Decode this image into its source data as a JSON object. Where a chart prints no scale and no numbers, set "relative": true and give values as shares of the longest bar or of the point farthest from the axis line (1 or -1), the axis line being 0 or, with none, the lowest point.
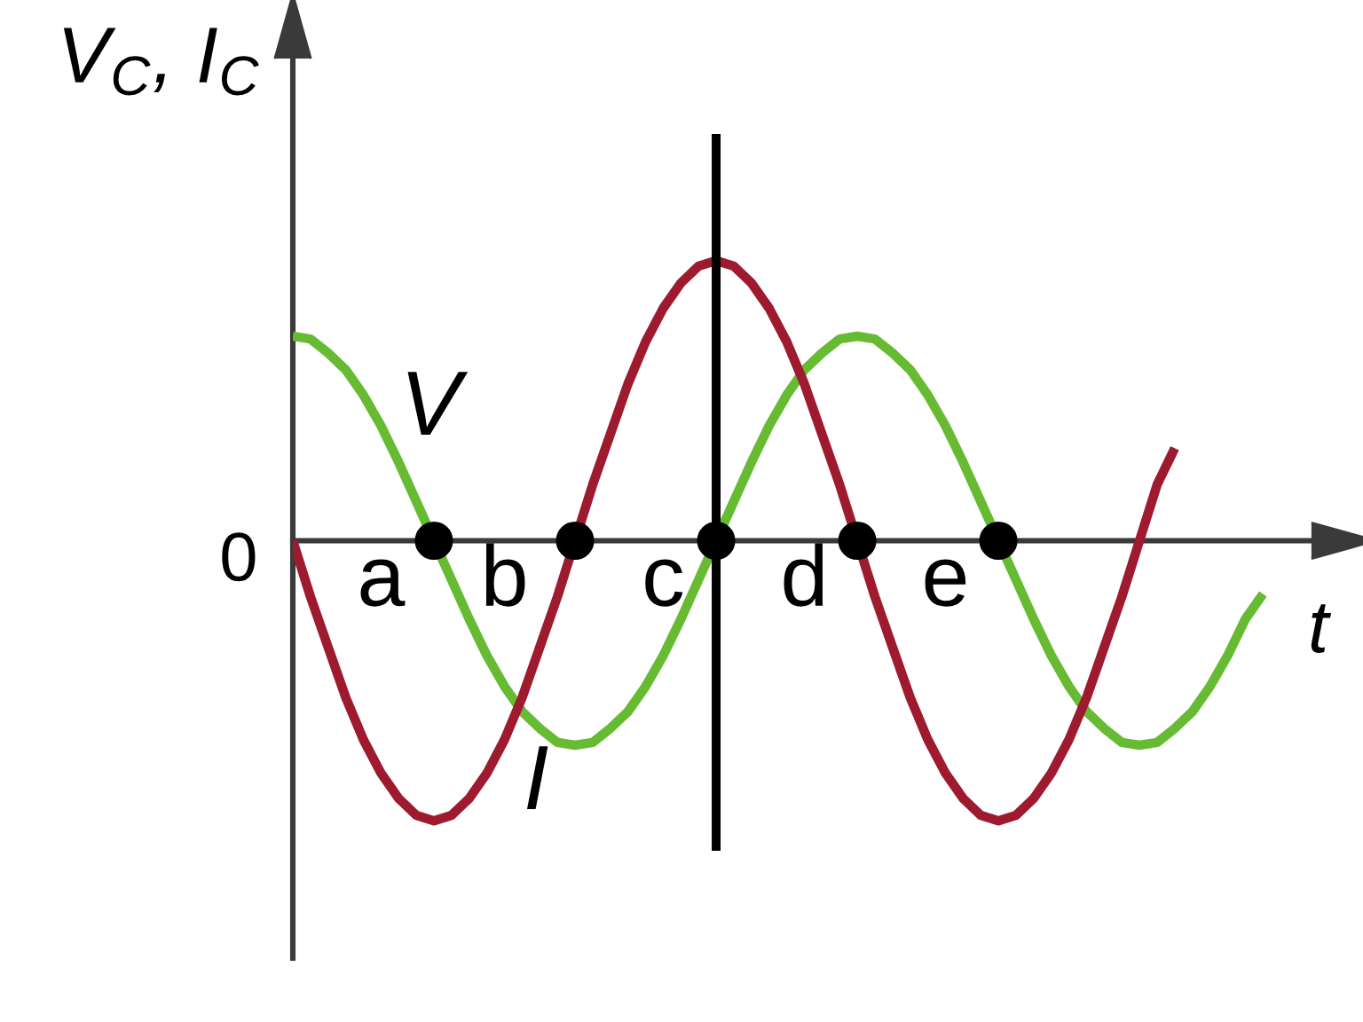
{
  "chart_data": {
    "type": "line",
    "relative": true,
    "xlabel": "t",
    "ylabel": "V$_{C}$, I$_{C}$",
    "marker": "none",
    "line_style": "solid",
    "categories": [
      null,
      null,
      null,
      null,
      null,
      "a",
      null,
      null,
      null,
      null,
      null,
      null,
      "b",
      null,
      null,
      null,
      null,
      null,
      null,
      null,
      null,
      "c",
      null,
      null,
      null,
      null,
      null,
      null,
      null,
      "d",
      null,
      null,
      null,
      null,
      null,
      null,
      null,
      "e",
      null,
      null,
      null,
      null,
      null,
      null,
      null,
      null,
      null,
      null,
      null,
      null,
      null,
      null,
      null,
      null,
      null,
      null
    ],
    "series": [
      {
        "name": "V",
        "color": "#66bb33",
        "values": [
          0.73,
          0.72,
          0.67,
          0.61,
          0.52,
          0.41,
          0.28,
          0.14,
          0,
          -0.14,
          -0.28,
          -0.41,
          -0.52,
          -0.61,
          -0.67,
          -0.72,
          -0.73,
          -0.72,
          -0.67,
          -0.61,
          -0.52,
          -0.41,
          -0.28,
          -0.14,
          0,
          0.14,
          0.28,
          0.41,
          0.52,
          0.61,
          0.67,
          0.72,
          0.73,
          0.72,
          0.67,
          0.61,
          0.52,
          0.41,
          0.28,
          0.14,
          0,
          -0.14,
          -0.28,
          -0.41,
          -0.52,
          -0.61,
          -0.67,
          -0.72,
          -0.73,
          -0.72,
          -0.67,
          -0.61,
          -0.52,
          -0.41,
          -0.28,
          -0.19
        ]
      },
      {
        "name": "I",
        "color": "#9e1a2e",
        "values": [
          0,
          -0.2,
          -0.38,
          -0.56,
          -0.71,
          -0.83,
          -0.92,
          -0.98,
          -1,
          -0.98,
          -0.92,
          -0.83,
          -0.71,
          -0.56,
          -0.38,
          -0.2,
          0,
          0.2,
          0.38,
          0.56,
          0.71,
          0.83,
          0.92,
          0.98,
          1,
          0.98,
          0.92,
          0.83,
          0.71,
          0.56,
          0.38,
          0.2,
          0,
          -0.2,
          -0.38,
          -0.56,
          -0.71,
          -0.83,
          -0.92,
          -0.98,
          -1,
          -0.98,
          -0.92,
          -0.83,
          -0.71,
          -0.56,
          -0.38,
          -0.2,
          0,
          0.2,
          0.33,
          null,
          null,
          null,
          null,
          null
        ]
      },
      {
        "type": "scatter",
        "marker": "circle",
        "color": "#000000",
        "values": [
          null,
          null,
          null,
          null,
          null,
          null,
          null,
          null,
          0,
          null,
          null,
          null,
          null,
          null,
          null,
          null,
          0,
          null,
          null,
          null,
          null,
          null,
          null,
          null,
          0,
          null,
          null,
          null,
          null,
          null,
          null,
          null,
          0,
          null,
          null,
          null,
          null,
          null,
          null,
          null,
          0,
          null,
          null,
          null,
          null,
          null,
          null,
          null,
          null,
          null,
          null,
          null,
          null,
          null,
          null,
          null
        ]
      }
    ],
    "annotations": [
      "0"
    ]
  }
}
